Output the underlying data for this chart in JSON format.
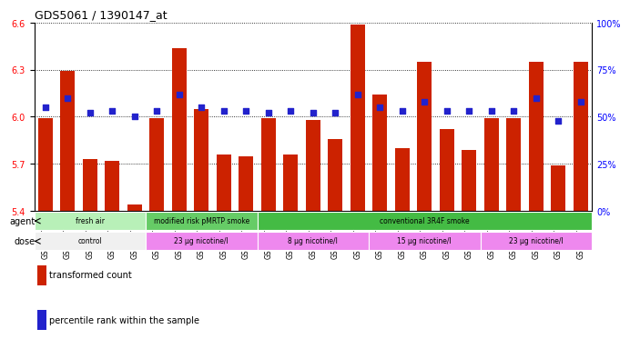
{
  "title": "GDS5061 / 1390147_at",
  "samples": [
    "GSM1217156",
    "GSM1217157",
    "GSM1217158",
    "GSM1217159",
    "GSM1217160",
    "GSM1217161",
    "GSM1217162",
    "GSM1217163",
    "GSM1217164",
    "GSM1217165",
    "GSM1217171",
    "GSM1217172",
    "GSM1217173",
    "GSM1217174",
    "GSM1217175",
    "GSM1217166",
    "GSM1217167",
    "GSM1217168",
    "GSM1217169",
    "GSM1217170",
    "GSM1217176",
    "GSM1217177",
    "GSM1217178",
    "GSM1217179",
    "GSM1217180"
  ],
  "transformed_counts": [
    5.99,
    6.29,
    5.73,
    5.72,
    5.44,
    5.99,
    6.44,
    6.05,
    5.76,
    5.75,
    5.99,
    5.76,
    5.98,
    5.86,
    6.59,
    6.14,
    5.8,
    6.35,
    5.92,
    5.79,
    5.99,
    5.99,
    6.35,
    5.69,
    6.35
  ],
  "percentile_ranks": [
    55,
    60,
    52,
    53,
    50,
    53,
    62,
    55,
    53,
    53,
    52,
    53,
    52,
    52,
    62,
    55,
    53,
    58,
    53,
    53,
    53,
    53,
    60,
    48,
    58
  ],
  "ylim_left": [
    5.4,
    6.6
  ],
  "ylim_right": [
    0,
    100
  ],
  "yticks_left": [
    5.4,
    5.7,
    6.0,
    6.3,
    6.6
  ],
  "yticks_right": [
    0,
    25,
    50,
    75,
    100
  ],
  "bar_color": "#cc2200",
  "dot_color": "#2222cc",
  "background_color": "#ffffff",
  "agent_groups": [
    {
      "label": "fresh air",
      "start": 0,
      "end": 5,
      "color": "#b8f0b8"
    },
    {
      "label": "modified risk pMRTP smoke",
      "start": 5,
      "end": 10,
      "color": "#66cc66"
    },
    {
      "label": "conventional 3R4F smoke",
      "start": 10,
      "end": 25,
      "color": "#44bb44"
    }
  ],
  "dose_groups": [
    {
      "label": "control",
      "start": 0,
      "end": 5,
      "color": "#f0f0f0"
    },
    {
      "label": "23 μg nicotine/l",
      "start": 5,
      "end": 10,
      "color": "#ee88ee"
    },
    {
      "label": "8 μg nicotine/l",
      "start": 10,
      "end": 15,
      "color": "#ee88ee"
    },
    {
      "label": "15 μg nicotine/l",
      "start": 15,
      "end": 20,
      "color": "#ee88ee"
    },
    {
      "label": "23 μg nicotine/l",
      "start": 20,
      "end": 25,
      "color": "#ee88ee"
    }
  ],
  "legend_items": [
    {
      "label": "transformed count",
      "color": "#cc2200"
    },
    {
      "label": "percentile rank within the sample",
      "color": "#2222cc"
    }
  ]
}
